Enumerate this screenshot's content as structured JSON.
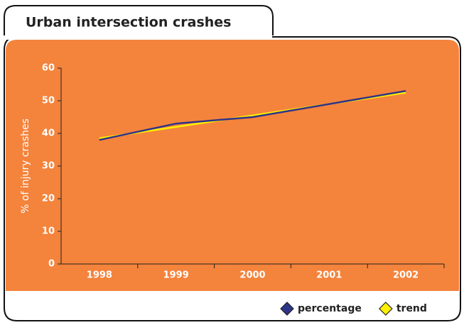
{
  "chart_data": {
    "type": "line",
    "title": "Urban intersection crashes",
    "y_label": "% of injury crashes",
    "categories": [
      "1998",
      "1999",
      "2000",
      "2001",
      "2002"
    ],
    "series": [
      {
        "name": "percentage",
        "color": "#2e3487",
        "values": [
          38,
          43,
          45,
          49,
          53
        ]
      },
      {
        "name": "trend",
        "color": "#fff200",
        "values": [
          38.5,
          42,
          45.5,
          49,
          52.5
        ]
      }
    ],
    "ylim": [
      0,
      60
    ],
    "yticks": [
      0,
      10,
      20,
      30,
      40,
      50,
      60
    ],
    "legend": "bottom-right"
  }
}
